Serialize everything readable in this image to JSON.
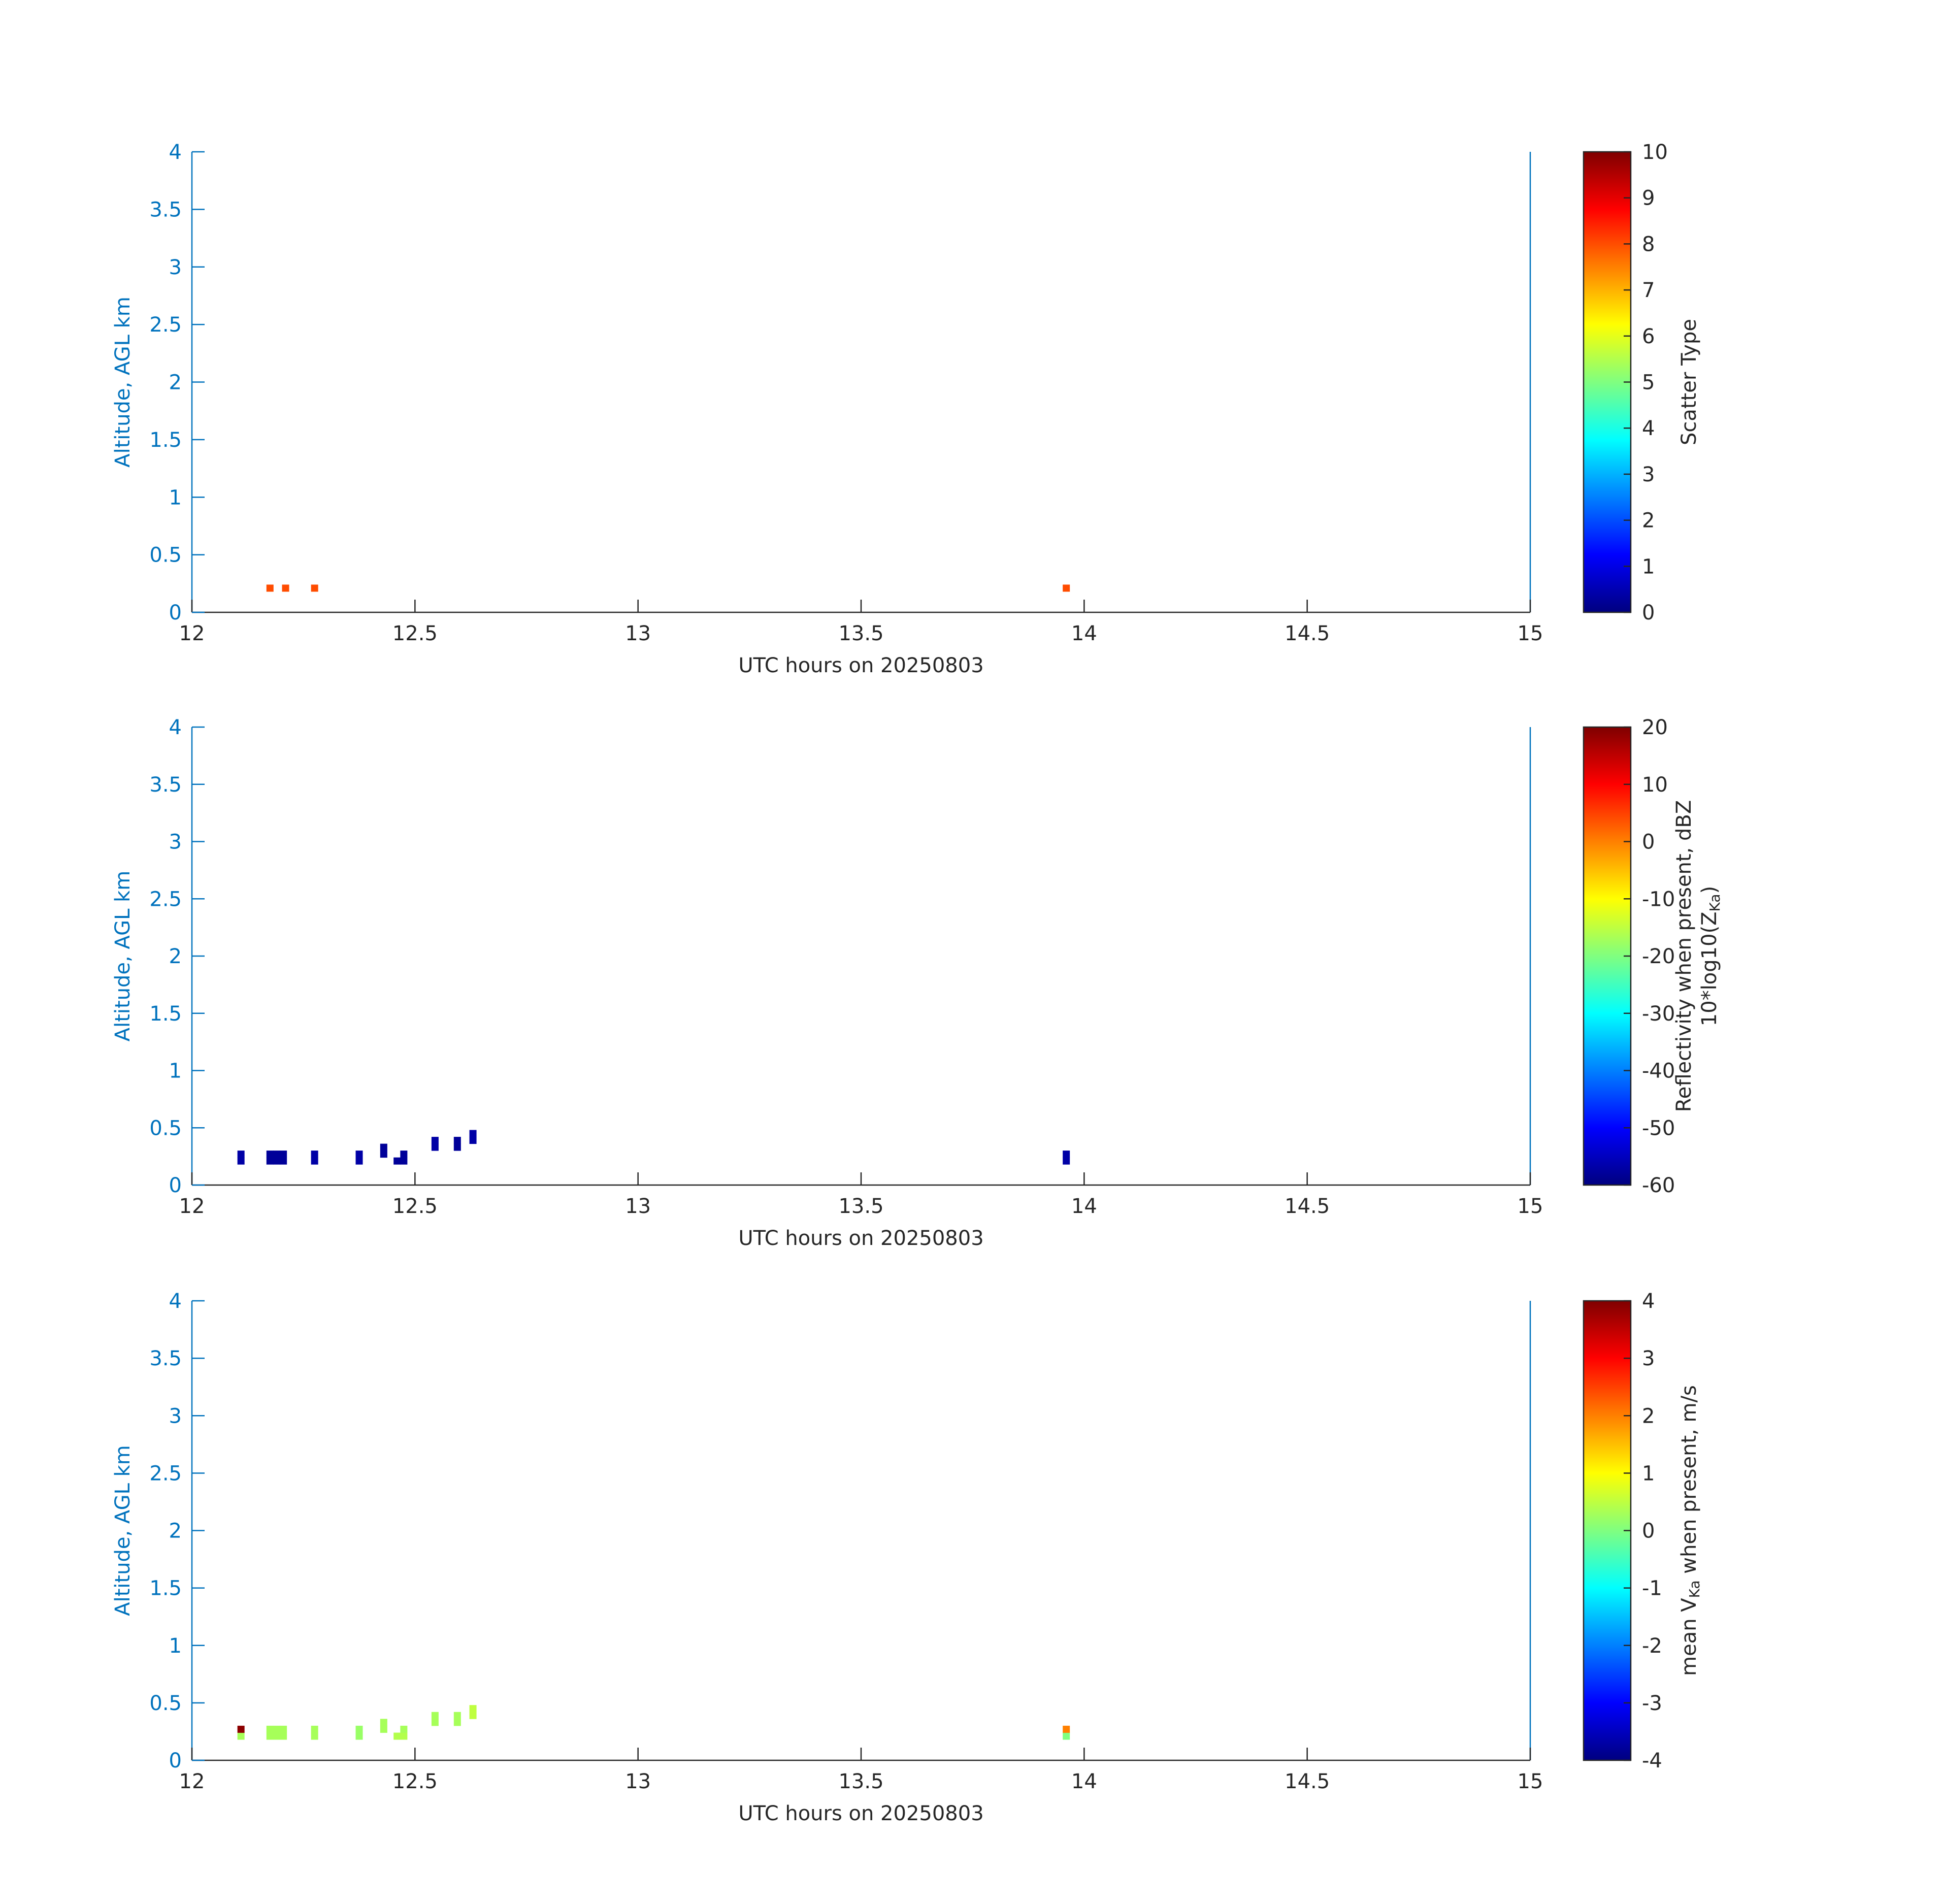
{
  "chart_data": [
    {
      "type": "heatmap",
      "colormap": "jet",
      "x": [
        12.175,
        12.21,
        12.275,
        13.96
      ],
      "y": [
        0.21,
        0.21,
        0.21,
        0.21
      ],
      "values": [
        8,
        8,
        8,
        8
      ],
      "xlim": [
        12,
        15
      ],
      "xticks": [
        12,
        12.5,
        13,
        13.5,
        14,
        14.5,
        15
      ],
      "ylim": [
        0,
        4
      ],
      "yticks": [
        0,
        0.5,
        1,
        1.5,
        2,
        2.5,
        3,
        3.5,
        4
      ],
      "xlabel": "UTC hours on 20250803",
      "ylabel": "Altitude, AGL km",
      "clim": [
        0,
        10
      ],
      "cticks": [
        0,
        1,
        2,
        3,
        4,
        5,
        6,
        7,
        8,
        9,
        10
      ],
      "colorbar_label": [
        [
          "Scatter Type"
        ]
      ]
    },
    {
      "type": "heatmap",
      "colormap": "jet",
      "x": [
        12.11,
        12.11,
        12.175,
        12.175,
        12.19,
        12.19,
        12.205,
        12.205,
        12.275,
        12.275,
        12.375,
        12.375,
        12.43,
        12.43,
        12.46,
        12.475,
        12.475,
        12.545,
        12.545,
        12.595,
        12.595,
        12.63,
        12.63,
        13.96,
        13.96
      ],
      "y": [
        0.21,
        0.27,
        0.21,
        0.27,
        0.21,
        0.27,
        0.21,
        0.27,
        0.21,
        0.27,
        0.21,
        0.27,
        0.27,
        0.33,
        0.21,
        0.21,
        0.27,
        0.33,
        0.39,
        0.33,
        0.39,
        0.39,
        0.45,
        0.21,
        0.27
      ],
      "values": [
        -57,
        -57,
        -58,
        -58,
        -58,
        -58,
        -58,
        -58,
        -57,
        -57,
        -57,
        -57,
        -58,
        -58,
        -58,
        -58,
        -58,
        -57,
        -57,
        -58,
        -58,
        -57,
        -57,
        -57,
        -57
      ],
      "xlim": [
        12,
        15
      ],
      "xticks": [
        12,
        12.5,
        13,
        13.5,
        14,
        14.5,
        15
      ],
      "ylim": [
        0,
        4
      ],
      "yticks": [
        0,
        0.5,
        1,
        1.5,
        2,
        2.5,
        3,
        3.5,
        4
      ],
      "xlabel": "UTC hours on 20250803",
      "ylabel": "Altitude, AGL km",
      "clim": [
        -60,
        20
      ],
      "cticks": [
        -60,
        -50,
        -40,
        -30,
        -20,
        -10,
        0,
        10,
        20
      ],
      "colorbar_label": [
        [
          "Reflectivity when present, dBZ"
        ],
        [
          "10*log10(Z",
          "Ka",
          ")"
        ]
      ]
    },
    {
      "type": "heatmap",
      "colormap": "jet",
      "x": [
        12.11,
        12.11,
        12.175,
        12.175,
        12.19,
        12.19,
        12.205,
        12.205,
        12.275,
        12.275,
        12.375,
        12.375,
        12.43,
        12.43,
        12.46,
        12.475,
        12.475,
        12.545,
        12.545,
        12.595,
        12.595,
        12.63,
        12.63,
        13.96,
        13.96
      ],
      "y": [
        0.21,
        0.27,
        0.21,
        0.27,
        0.21,
        0.27,
        0.21,
        0.27,
        0.21,
        0.27,
        0.21,
        0.27,
        0.27,
        0.33,
        0.21,
        0.21,
        0.27,
        0.33,
        0.39,
        0.33,
        0.39,
        0.39,
        0.45,
        0.21,
        0.27
      ],
      "values": [
        0.3,
        3.9,
        0.3,
        0.3,
        0.3,
        0.3,
        0.3,
        0.3,
        0.3,
        0.3,
        0.2,
        0.2,
        0.3,
        0.3,
        0.4,
        0.4,
        0.3,
        0.3,
        0.3,
        0.3,
        0.3,
        0.5,
        0.5,
        0,
        2
      ],
      "xlim": [
        12,
        15
      ],
      "xticks": [
        12,
        12.5,
        13,
        13.5,
        14,
        14.5,
        15
      ],
      "ylim": [
        0,
        4
      ],
      "yticks": [
        0,
        0.5,
        1,
        1.5,
        2,
        2.5,
        3,
        3.5,
        4
      ],
      "xlabel": "UTC hours on 20250803",
      "ylabel": "Altitude, AGL km",
      "clim": [
        -4,
        4
      ],
      "cticks": [
        -4,
        -3,
        -2,
        -1,
        0,
        1,
        2,
        3,
        4
      ],
      "colorbar_label": [
        [
          "mean V",
          "Ka",
          " when present, m/s"
        ]
      ]
    }
  ]
}
